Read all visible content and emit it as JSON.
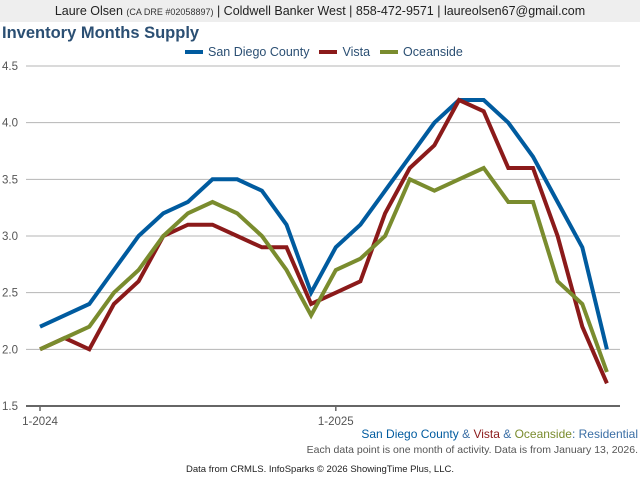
{
  "header": {
    "agent_name": "Laure Olsen",
    "dre": "(CA DRE #02058897)",
    "rest": "| Coldwell Banker West | 858-472-9571 | laureolsen67@gmail.com"
  },
  "footer": {
    "series_1": "San Diego County",
    "sep_1": " & ",
    "series_2": "Vista",
    "sep_2": " & ",
    "series_3": "Oceanside",
    "suffix": ": Residential",
    "note": "Each data point is one month of activity. Data is from January 13, 2026.",
    "source": "Data from CRMLS. InfoSparks © 2026 ShowingTime Plus, LLC."
  },
  "colors": {
    "san_diego": "#005b9f",
    "vista": "#8b1a1a",
    "oceanside": "#7a8c2e",
    "title": "#2b4f73",
    "suffix": "#3a6ea5"
  },
  "chart_data": {
    "type": "line",
    "title": "Inventory Months Supply",
    "xlabel": "",
    "ylabel": "",
    "ylim": [
      1.5,
      4.5
    ],
    "yticks": [
      "4.5",
      "4.0",
      "3.5",
      "3.0",
      "2.5",
      "2.0",
      "1.5"
    ],
    "ytick_values": [
      4.5,
      4.0,
      3.5,
      3.0,
      2.5,
      2.0,
      1.5
    ],
    "x": [
      "1-2024",
      "2-2024",
      "3-2024",
      "4-2024",
      "5-2024",
      "6-2024",
      "7-2024",
      "8-2024",
      "9-2024",
      "10-2024",
      "11-2024",
      "12-2024",
      "1-2025",
      "2-2025",
      "3-2025",
      "4-2025",
      "5-2025",
      "6-2025",
      "7-2025",
      "8-2025",
      "9-2025",
      "10-2025",
      "11-2025",
      "12-2025"
    ],
    "xticks": [
      {
        "label": "1-2024",
        "index": 0
      },
      {
        "label": "1-2025",
        "index": 12
      }
    ],
    "grid": true,
    "legend_position": "top-center",
    "series": [
      {
        "name": "San Diego County",
        "color": "#005b9f",
        "values": [
          2.2,
          2.3,
          2.4,
          2.7,
          3.0,
          3.2,
          3.3,
          3.5,
          3.5,
          3.4,
          3.1,
          2.5,
          2.9,
          3.1,
          3.4,
          3.7,
          4.0,
          4.2,
          4.2,
          4.0,
          3.7,
          3.3,
          2.9,
          2.0
        ]
      },
      {
        "name": "Vista",
        "color": "#8b1a1a",
        "values": [
          2.0,
          2.1,
          2.0,
          2.4,
          2.6,
          3.0,
          3.1,
          3.1,
          3.0,
          2.9,
          2.9,
          2.4,
          2.5,
          2.6,
          3.2,
          3.6,
          3.8,
          4.2,
          4.1,
          3.6,
          3.6,
          3.0,
          2.2,
          1.7
        ]
      },
      {
        "name": "Oceanside",
        "color": "#7a8c2e",
        "values": [
          2.0,
          2.1,
          2.2,
          2.5,
          2.7,
          3.0,
          3.2,
          3.3,
          3.2,
          3.0,
          2.7,
          2.3,
          2.7,
          2.8,
          3.0,
          3.5,
          3.4,
          3.5,
          3.6,
          3.3,
          3.3,
          2.6,
          2.4,
          1.8
        ]
      }
    ]
  }
}
